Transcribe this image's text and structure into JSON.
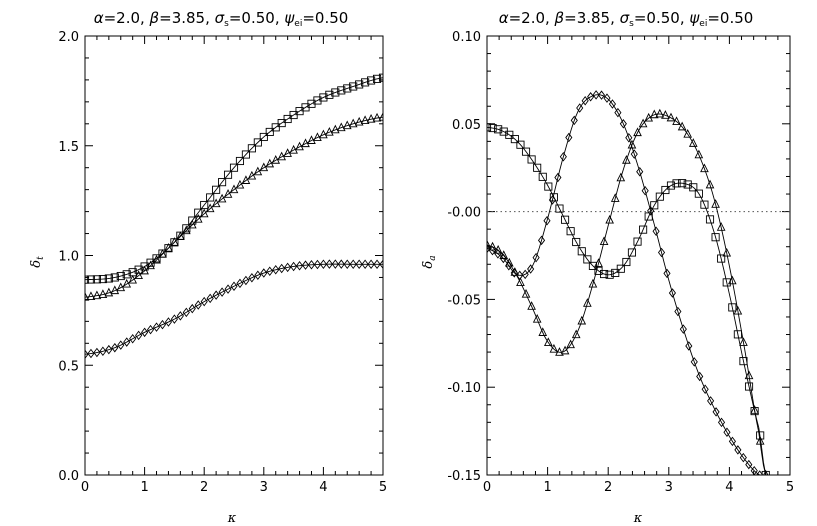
{
  "chart_data": [
    {
      "type": "line",
      "title": {
        "a": "α",
        "a_val": "=2.0,  ",
        "b": "β",
        "b_val": "=3.85,  ",
        "s": "σ",
        "s_sub": "s",
        "s_val": "=0.50,  ",
        "p": "ψ",
        "p_sub": "ei",
        "p_val": "=0.50"
      },
      "xlabel": "κ",
      "ylabel": {
        "main": "δ",
        "sub": "t"
      },
      "xlim": [
        0,
        5
      ],
      "ylim": [
        0.0,
        2.0
      ],
      "xticks": [
        "0",
        "1",
        "2",
        "3",
        "4",
        "5"
      ],
      "yticks": [
        "0.0",
        "0.5",
        "1.0",
        "1.5",
        "2.0"
      ],
      "grid": false,
      "x": [
        0,
        0.5,
        1,
        1.5,
        2,
        2.5,
        3,
        3.5,
        4,
        4.5,
        5
      ],
      "series": [
        {
          "marker": "square",
          "values": [
            0.89,
            0.9,
            0.95,
            1.06,
            1.23,
            1.4,
            1.54,
            1.64,
            1.72,
            1.77,
            1.81
          ]
        },
        {
          "marker": "triangle",
          "values": [
            0.81,
            0.84,
            0.93,
            1.06,
            1.19,
            1.3,
            1.4,
            1.48,
            1.55,
            1.6,
            1.63
          ]
        },
        {
          "marker": "diamond",
          "values": [
            0.55,
            0.58,
            0.65,
            0.71,
            0.79,
            0.86,
            0.92,
            0.95,
            0.96,
            0.96,
            0.96
          ]
        }
      ]
    },
    {
      "type": "line",
      "title": {
        "a": "α",
        "a_val": "=2.0,  ",
        "b": "β",
        "b_val": "=3.85,  ",
        "s": "σ",
        "s_sub": "s",
        "s_val": "=0.50,  ",
        "p": "ψ",
        "p_sub": "ei",
        "p_val": "=0.50"
      },
      "xlabel": "κ",
      "ylabel": {
        "main": "δ",
        "sub": "a"
      },
      "xlim": [
        0,
        5
      ],
      "ylim": [
        -0.15,
        0.1
      ],
      "xticks": [
        "0",
        "1",
        "2",
        "3",
        "4",
        "5"
      ],
      "yticks": [
        "-0.15",
        "-0.10",
        "-0.05",
        "-0.00",
        "0.05",
        "0.10"
      ],
      "grid": false,
      "reference_line_y": 0.0,
      "series": [
        {
          "marker": "square",
          "x": [
            0,
            0.25,
            0.5,
            0.75,
            1.0,
            1.25,
            1.5,
            1.75,
            2.0,
            2.25,
            2.5,
            2.75,
            3.0,
            3.25,
            3.5,
            3.75,
            4.0,
            4.25,
            4.5,
            4.6
          ],
          "values": [
            0.048,
            0.046,
            0.04,
            0.029,
            0.015,
            -0.002,
            -0.019,
            -0.031,
            -0.036,
            -0.031,
            -0.016,
            0.003,
            0.014,
            0.016,
            0.01,
            -0.012,
            -0.047,
            -0.088,
            -0.125,
            -0.15
          ]
        },
        {
          "marker": "triangle",
          "x": [
            0,
            0.25,
            0.5,
            0.75,
            1.0,
            1.25,
            1.5,
            1.75,
            2.0,
            2.25,
            2.5,
            2.75,
            3.0,
            3.25,
            3.5,
            3.75,
            4.0,
            4.25,
            4.5,
            4.6
          ],
          "values": [
            -0.019,
            -0.024,
            -0.037,
            -0.055,
            -0.074,
            -0.08,
            -0.068,
            -0.041,
            -0.008,
            0.024,
            0.046,
            0.055,
            0.054,
            0.047,
            0.032,
            0.007,
            -0.031,
            -0.078,
            -0.128,
            -0.15
          ]
        },
        {
          "marker": "diamond",
          "x": [
            0,
            0.25,
            0.5,
            0.75,
            1.0,
            1.25,
            1.5,
            1.75,
            2.0,
            2.25,
            2.5,
            2.75,
            3.0,
            3.25,
            3.5,
            3.75,
            4.0,
            4.25,
            4.5
          ],
          "values": [
            -0.021,
            -0.026,
            -0.036,
            -0.031,
            -0.004,
            0.03,
            0.057,
            0.066,
            0.064,
            0.05,
            0.025,
            -0.006,
            -0.039,
            -0.068,
            -0.093,
            -0.112,
            -0.128,
            -0.141,
            -0.15
          ]
        }
      ]
    }
  ]
}
